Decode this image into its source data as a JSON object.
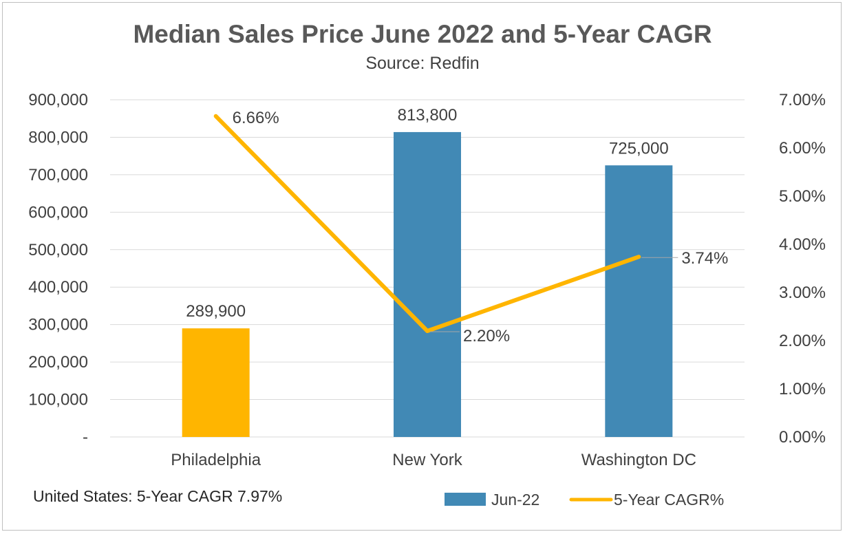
{
  "chart_data": {
    "type": "bar",
    "title": "Median Sales Price June 2022 and 5-Year CAGR",
    "subtitle": "Source: Redfin",
    "categories": [
      "Philadelphia",
      "New York",
      "Washington DC"
    ],
    "series": [
      {
        "name": "Jun-22",
        "type": "bar",
        "axis": "left",
        "values": [
          289900,
          813800,
          725000
        ],
        "labels": [
          "289,900",
          "813,800",
          "725,000"
        ],
        "color": "#4189b5",
        "point_colors": [
          "#ffb500",
          "#4189b5",
          "#4189b5"
        ]
      },
      {
        "name": "5-Year CAGR%",
        "type": "line",
        "axis": "right",
        "values": [
          6.66,
          2.2,
          3.74
        ],
        "labels": [
          "6.66%",
          "2.20%",
          "3.74%"
        ],
        "color": "#ffb500"
      }
    ],
    "y_left": {
      "ylim": [
        0,
        900000
      ],
      "ticks": [
        0,
        100000,
        200000,
        300000,
        400000,
        500000,
        600000,
        700000,
        800000,
        900000
      ],
      "tick_labels": [
        "-",
        "100,000",
        "200,000",
        "300,000",
        "400,000",
        "500,000",
        "600,000",
        "700,000",
        "800,000",
        "900,000"
      ]
    },
    "y_right": {
      "ylim": [
        0,
        7
      ],
      "ticks": [
        0,
        1,
        2,
        3,
        4,
        5,
        6,
        7
      ],
      "tick_labels": [
        "0.00%",
        "1.00%",
        "2.00%",
        "3.00%",
        "4.00%",
        "5.00%",
        "6.00%",
        "7.00%"
      ]
    },
    "grid": true,
    "legend_position": "bottom-right",
    "annotation": "United States: 5-Year CAGR 7.97%"
  }
}
